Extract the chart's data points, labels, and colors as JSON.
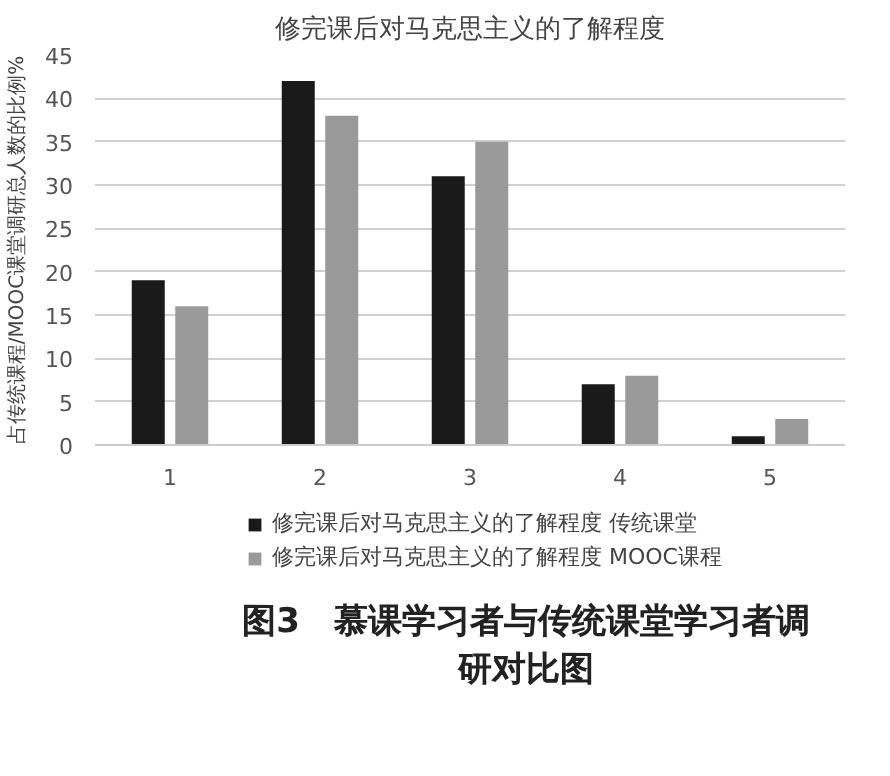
{
  "chart_data": {
    "type": "bar",
    "title": "修完课后对马克思主义的了解程度",
    "ylabel": "占传统课程/MOOC课堂调研总人数的比例%",
    "categories": [
      "1",
      "2",
      "3",
      "4",
      "5"
    ],
    "series": [
      {
        "name": "修完课后对马克思主义的了解程度 传统课堂",
        "color": "#1a1a1a",
        "values": [
          19,
          42,
          31,
          7,
          1
        ]
      },
      {
        "name": "修完课后对马克思主义的了解程度 MOOC课程",
        "color": "#9a9a9a",
        "values": [
          16,
          38,
          35,
          8,
          3
        ]
      }
    ],
    "ylim": [
      0,
      45
    ],
    "yticks": [
      0,
      5,
      10,
      15,
      20,
      25,
      30,
      35,
      40,
      45
    ],
    "grid": "y",
    "legend": "bottom",
    "annotations": [
      "图3　慕课学习者与传统课堂学习者调研对比图"
    ]
  }
}
